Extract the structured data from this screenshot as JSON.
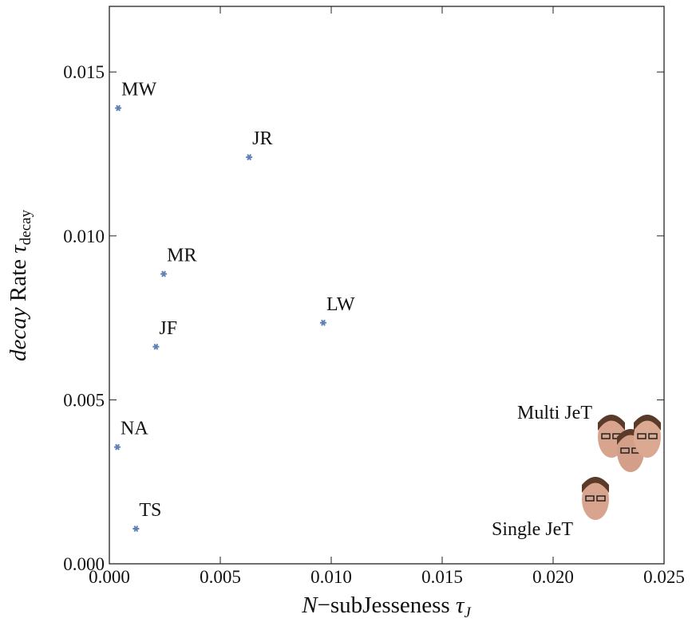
{
  "chart_data": {
    "type": "scatter",
    "x_label": {
      "italic": "N",
      "text": "−subJesseness ",
      "symbol": "τ",
      "sub": "J"
    },
    "y_label": {
      "italic": "decay",
      "text": " Rate ",
      "symbol": "τ",
      "sub": "decay"
    },
    "series": [
      {
        "color": "#5e81b5",
        "labels": [
          "MW",
          "JR",
          "MR",
          "LW",
          "JF",
          "NA",
          "TS"
        ],
        "x": [
          0.0004,
          0.0063,
          0.00245,
          0.00964,
          0.0021,
          0.00036,
          0.0012
        ],
        "values": [
          0.0139,
          0.0124,
          0.00884,
          0.00735,
          0.00662,
          0.00356,
          0.00107
        ]
      }
    ],
    "annotations": [
      "Multi JeT",
      "Single JeT"
    ],
    "xlim": [
      0,
      0.025
    ],
    "ylim": [
      0,
      0.017
    ],
    "xticks": [
      {
        "value": 0,
        "label": "0.000"
      },
      {
        "value": 0.005,
        "label": "0.005"
      },
      {
        "value": 0.01,
        "label": "0.010"
      },
      {
        "value": 0.015,
        "label": "0.015"
      },
      {
        "value": 0.02,
        "label": "0.020"
      },
      {
        "value": 0.025,
        "label": "0.025"
      }
    ],
    "yticks": [
      {
        "value": 0,
        "label": "0.000"
      },
      {
        "value": 0.005,
        "label": "0.005"
      },
      {
        "value": 0.01,
        "label": "0.010"
      },
      {
        "value": 0.015,
        "label": "0.015"
      }
    ]
  }
}
